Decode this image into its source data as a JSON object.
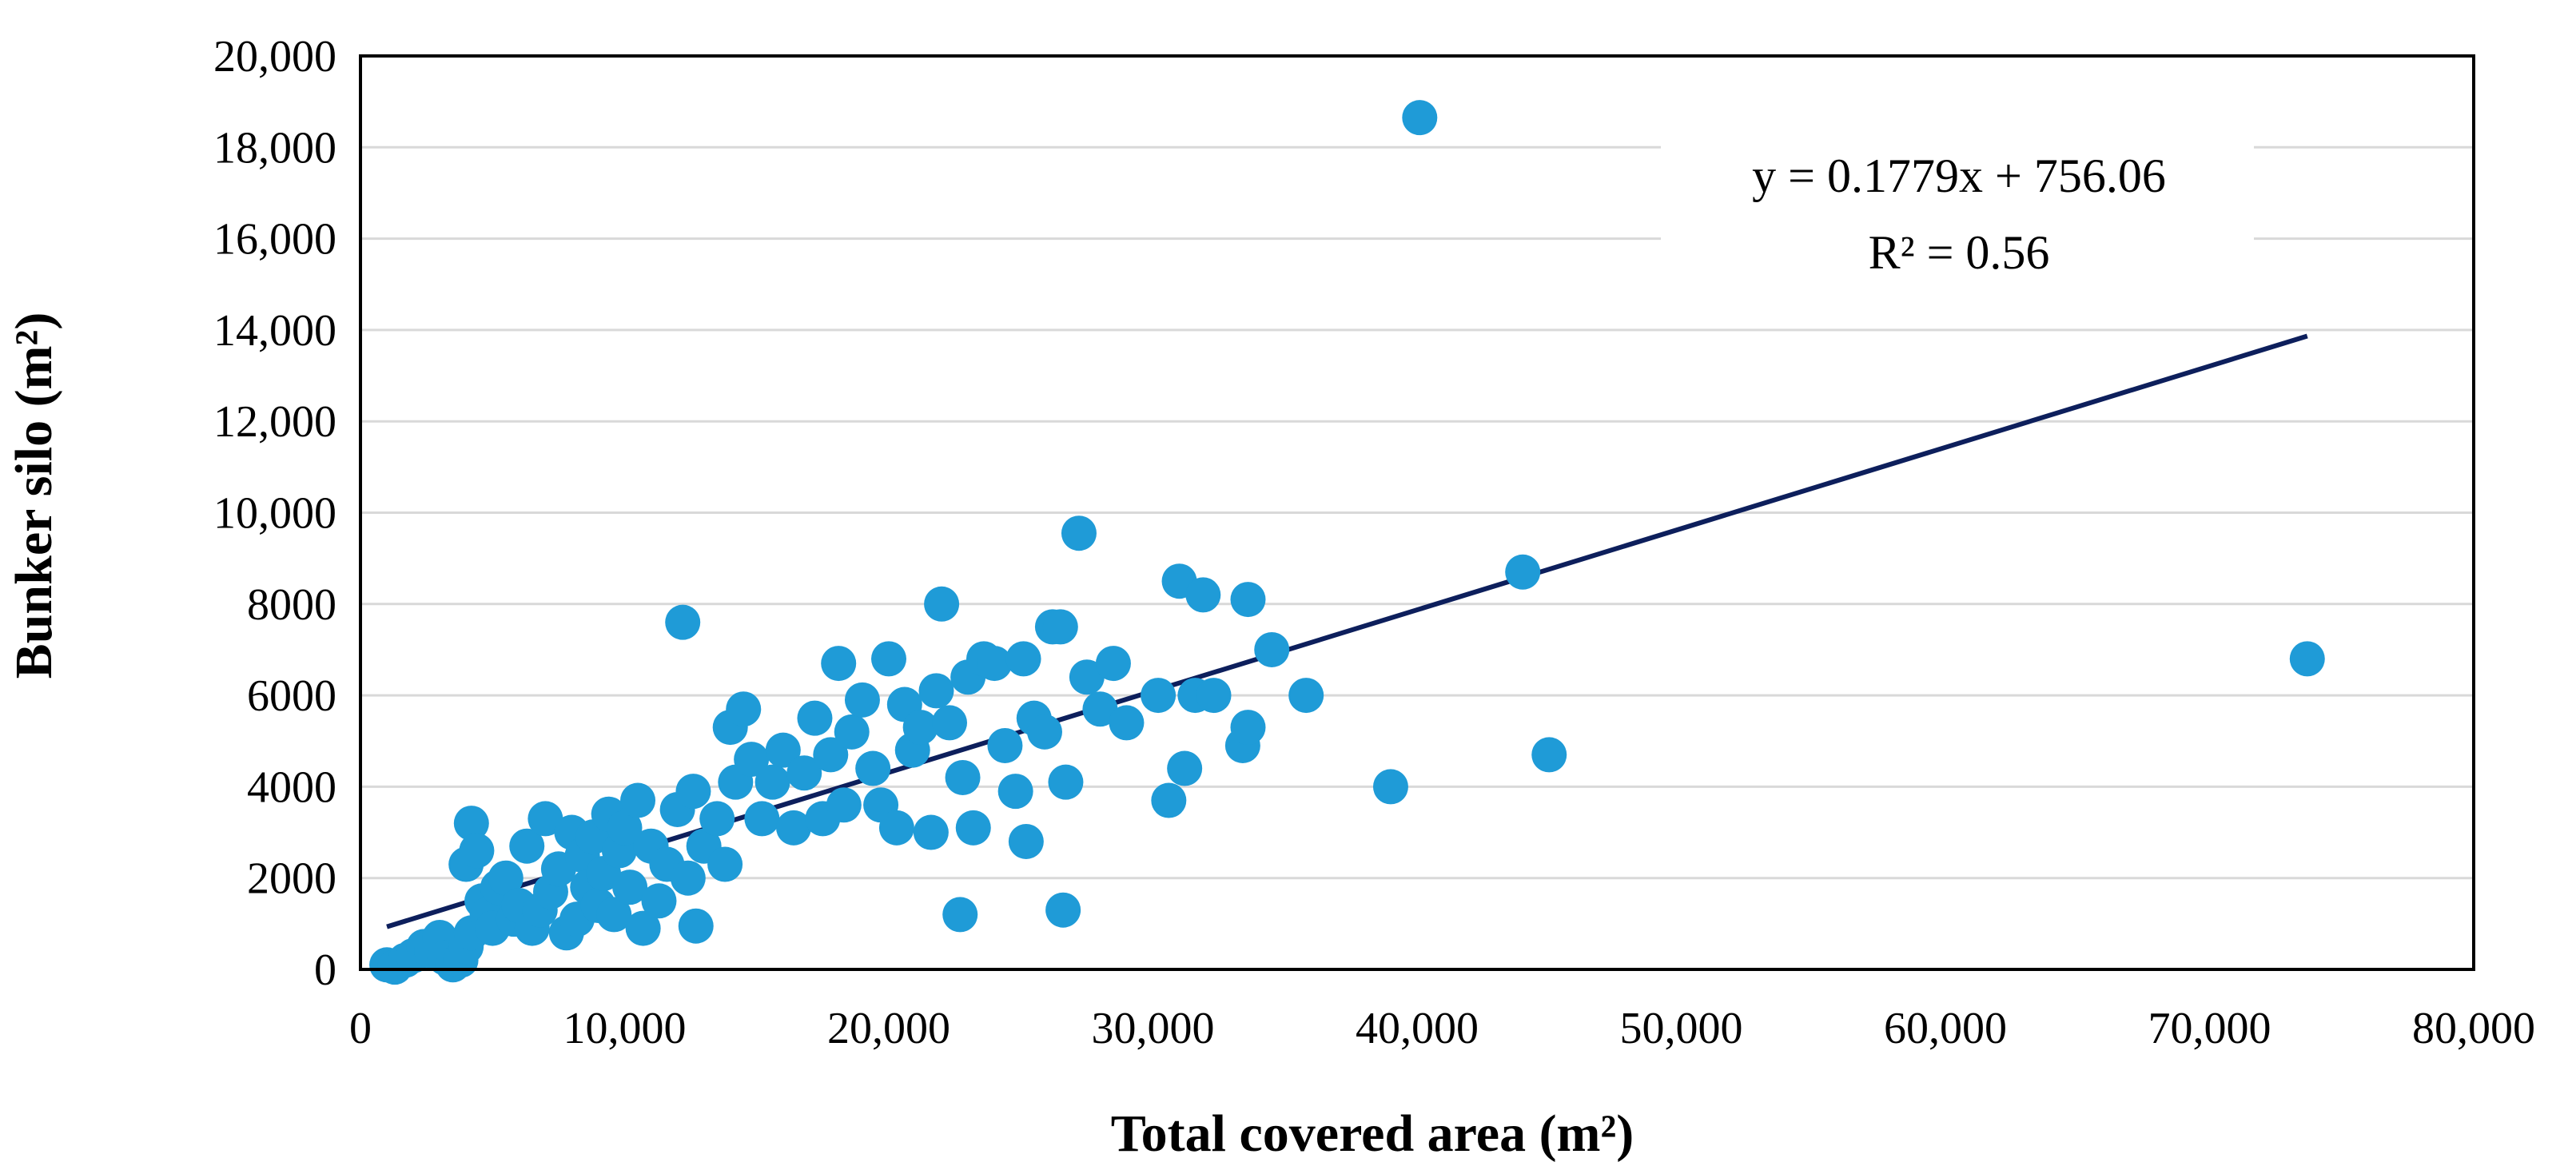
{
  "chart_data": {
    "type": "scatter",
    "title": "",
    "xlabel": "Total covered area (m²)",
    "ylabel": "Bunker silo (m²)",
    "xlim": [
      0,
      80000
    ],
    "ylim": [
      0,
      20000
    ],
    "x_ticks": [
      0,
      10000,
      20000,
      30000,
      40000,
      50000,
      60000,
      70000,
      80000
    ],
    "x_tick_labels": [
      "0",
      "10,000",
      "20,000",
      "30,000",
      "40,000",
      "50,000",
      "60,000",
      "70,000",
      "80,000"
    ],
    "y_ticks": [
      0,
      2000,
      4000,
      6000,
      8000,
      10000,
      12000,
      14000,
      16000,
      18000,
      20000
    ],
    "y_tick_labels": [
      "0",
      "2000",
      "4000",
      "6000",
      "8000",
      "10,000",
      "12,000",
      "14,000",
      "16,000",
      "18,000",
      "20,000"
    ],
    "grid": true,
    "point_color": "#1F9BD7",
    "trendline_color": "#0D1F5C",
    "series": [
      {
        "name": "Bunker silo",
        "points": [
          [
            1000,
            100
          ],
          [
            1300,
            50
          ],
          [
            1700,
            200
          ],
          [
            2000,
            300
          ],
          [
            2400,
            500
          ],
          [
            2700,
            400
          ],
          [
            3000,
            700
          ],
          [
            3200,
            250
          ],
          [
            3500,
            100
          ],
          [
            3800,
            200
          ],
          [
            4000,
            500
          ],
          [
            4200,
            800
          ],
          [
            4000,
            2300
          ],
          [
            4200,
            3200
          ],
          [
            4400,
            2600
          ],
          [
            4600,
            1500
          ],
          [
            4800,
            1200
          ],
          [
            5000,
            900
          ],
          [
            5200,
            1800
          ],
          [
            5500,
            2000
          ],
          [
            5800,
            1100
          ],
          [
            6000,
            1400
          ],
          [
            6300,
            2700
          ],
          [
            6500,
            900
          ],
          [
            6800,
            1300
          ],
          [
            7000,
            3300
          ],
          [
            7200,
            1700
          ],
          [
            7500,
            2200
          ],
          [
            7800,
            800
          ],
          [
            8000,
            3000
          ],
          [
            8200,
            1100
          ],
          [
            8400,
            2500
          ],
          [
            8600,
            1800
          ],
          [
            8800,
            2900
          ],
          [
            9000,
            1400
          ],
          [
            9200,
            2100
          ],
          [
            9400,
            3400
          ],
          [
            9600,
            1200
          ],
          [
            9800,
            2600
          ],
          [
            10000,
            3100
          ],
          [
            10200,
            1800
          ],
          [
            10500,
            3700
          ],
          [
            10700,
            900
          ],
          [
            11000,
            2700
          ],
          [
            11300,
            1500
          ],
          [
            11600,
            2300
          ],
          [
            12000,
            3500
          ],
          [
            12200,
            7600
          ],
          [
            12400,
            2000
          ],
          [
            12600,
            3900
          ],
          [
            12700,
            950
          ],
          [
            13000,
            2700
          ],
          [
            13500,
            3300
          ],
          [
            13800,
            2300
          ],
          [
            14000,
            5300
          ],
          [
            14200,
            4100
          ],
          [
            14500,
            5700
          ],
          [
            14800,
            4600
          ],
          [
            15200,
            3300
          ],
          [
            15600,
            4100
          ],
          [
            16000,
            4800
          ],
          [
            16400,
            3100
          ],
          [
            16800,
            4300
          ],
          [
            17200,
            5500
          ],
          [
            17500,
            3300
          ],
          [
            17800,
            4700
          ],
          [
            18100,
            6700
          ],
          [
            18300,
            3600
          ],
          [
            18600,
            5200
          ],
          [
            19000,
            5900
          ],
          [
            19400,
            4400
          ],
          [
            19700,
            3600
          ],
          [
            20000,
            6800
          ],
          [
            20300,
            3100
          ],
          [
            20600,
            5800
          ],
          [
            20900,
            4800
          ],
          [
            21200,
            5300
          ],
          [
            21600,
            3000
          ],
          [
            21800,
            6100
          ],
          [
            22000,
            8000
          ],
          [
            22300,
            5400
          ],
          [
            22700,
            1200
          ],
          [
            22800,
            4200
          ],
          [
            23000,
            6400
          ],
          [
            23200,
            3100
          ],
          [
            23600,
            6800
          ],
          [
            24000,
            6700
          ],
          [
            24400,
            4900
          ],
          [
            24800,
            3900
          ],
          [
            25100,
            6800
          ],
          [
            25200,
            2800
          ],
          [
            25500,
            5500
          ],
          [
            25900,
            5200
          ],
          [
            26200,
            7500
          ],
          [
            26500,
            7500
          ],
          [
            26600,
            1300
          ],
          [
            26700,
            4100
          ],
          [
            27200,
            9550
          ],
          [
            27500,
            6400
          ],
          [
            28000,
            5700
          ],
          [
            28500,
            6700
          ],
          [
            29000,
            5400
          ],
          [
            30200,
            6000
          ],
          [
            30600,
            3700
          ],
          [
            31000,
            8500
          ],
          [
            31200,
            4400
          ],
          [
            31600,
            6000
          ],
          [
            31900,
            8200
          ],
          [
            32300,
            6000
          ],
          [
            33400,
            4900
          ],
          [
            33600,
            8100
          ],
          [
            33600,
            5300
          ],
          [
            34500,
            7000
          ],
          [
            35800,
            6000
          ],
          [
            39000,
            4000
          ],
          [
            40100,
            18650
          ],
          [
            44000,
            8700
          ],
          [
            45000,
            4700
          ],
          [
            73700,
            6800
          ]
        ]
      }
    ],
    "trendline": {
      "type": "linear",
      "slope": 0.1779,
      "intercept": 756.06,
      "x_range": [
        1000,
        73700
      ],
      "equation": "y = 0.1779x + 756.06",
      "r_squared": "R² = 0.56"
    }
  }
}
